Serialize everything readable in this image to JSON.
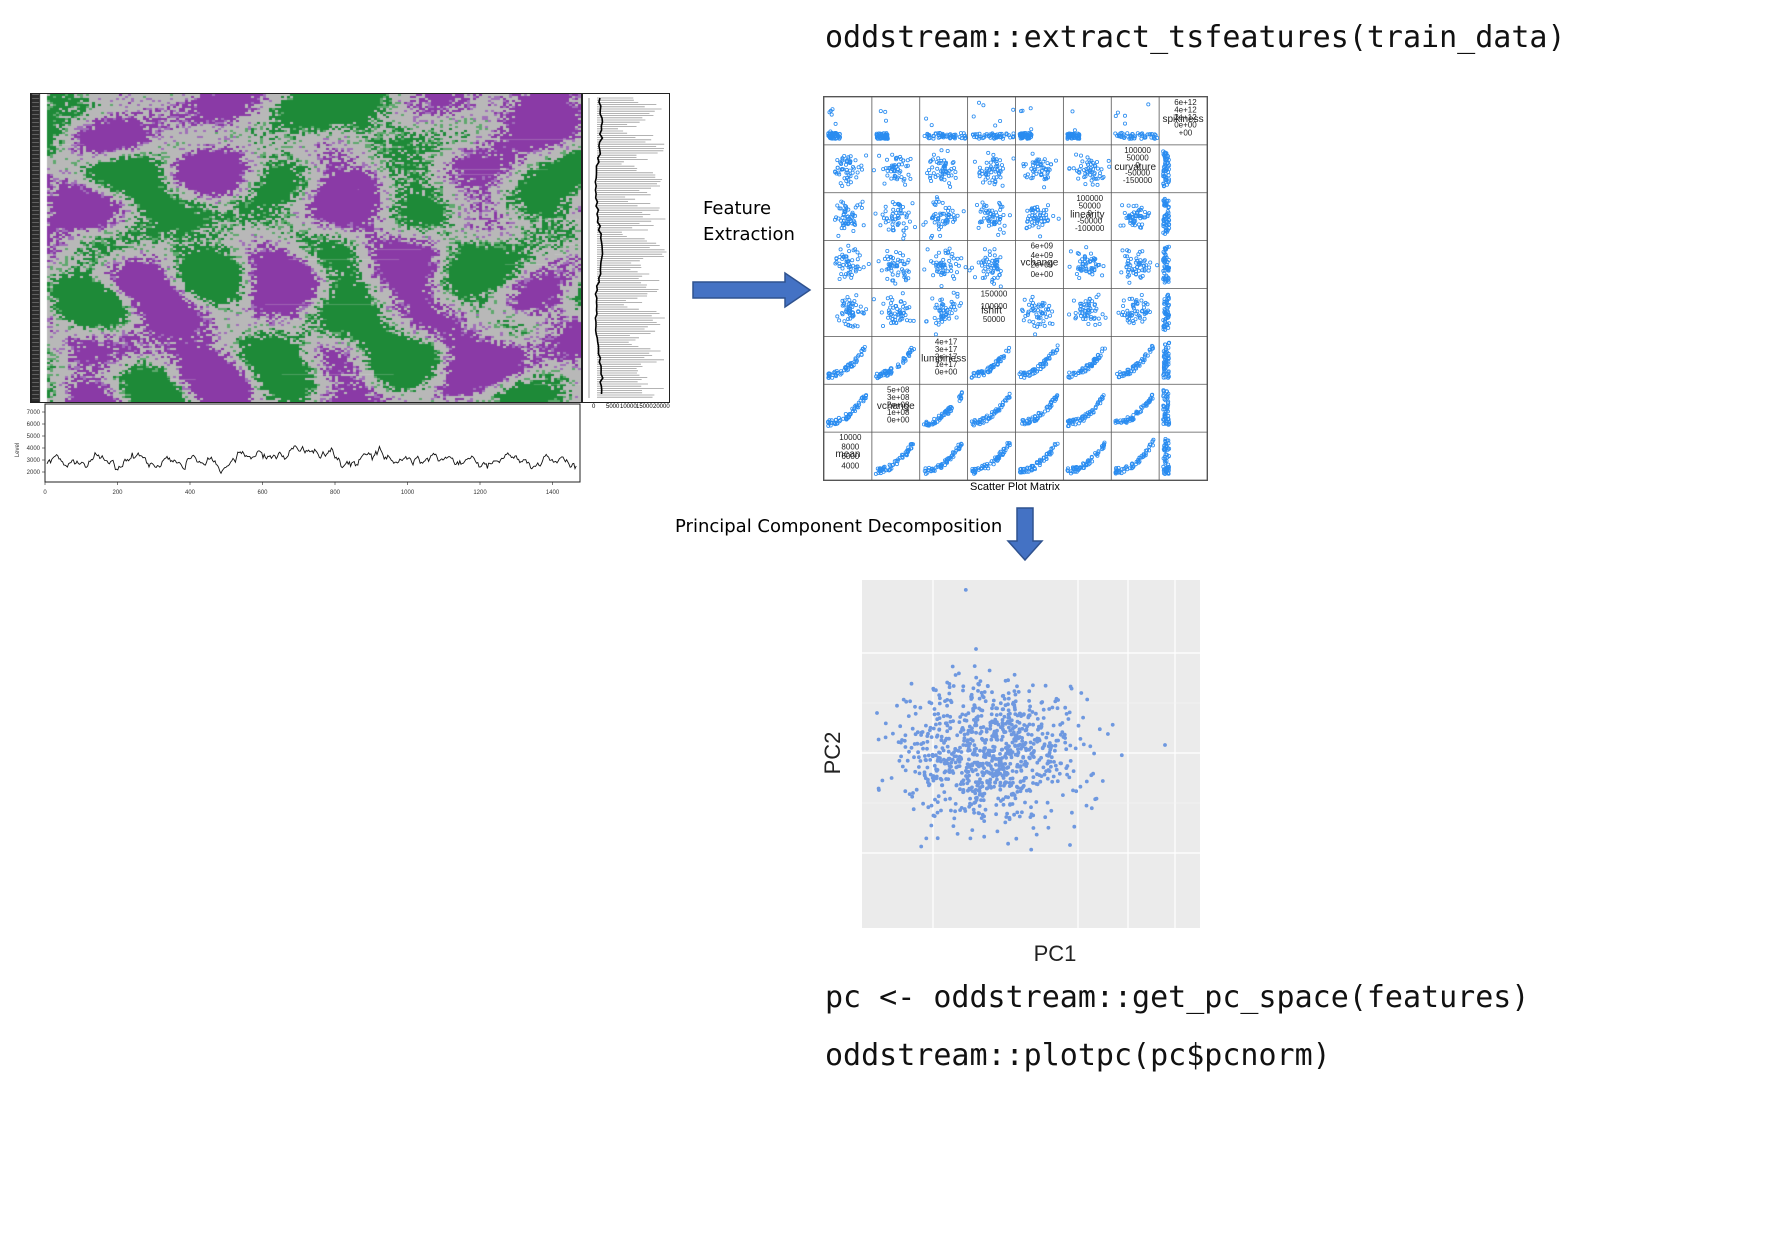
{
  "code": {
    "extract": "oddstream::extract_tsfeatures(train_data)",
    "get_pc": "pc <- oddstream::get_pc_space(features)",
    "plotpc": "oddstream::plotpc(pc$pcnorm)"
  },
  "steps": {
    "feature_extraction_line1": "Feature",
    "feature_extraction_line2": "Extraction",
    "pca": "Principal Component Decomposition"
  },
  "colors": {
    "heat_purple": "#8a3aa6",
    "heat_green": "#1e8a38",
    "heat_grey": "#b8b8b8",
    "arrow": "#4472c4",
    "scatter_blue": "#2a8cf0",
    "pc_point": "#6e98e0",
    "pc_panel": "#ebebeb"
  },
  "timeseries": {
    "ylabel": "Level",
    "yticks": [
      "7000",
      "6000",
      "5000",
      "4000",
      "3000",
      "2000"
    ],
    "xticks": [
      "0",
      "200",
      "400",
      "600",
      "800",
      "1000",
      "1200",
      "1400"
    ],
    "side_xticks": [
      "0",
      "5000",
      "10000",
      "15000",
      "20000"
    ]
  },
  "scatter_matrix": {
    "caption": "Scatter Plot Matrix",
    "diagonal": [
      {
        "name": "spikiness",
        "ticks": [
          "6e+12",
          "4e+12",
          "2e+12",
          "0e+00",
          "+00"
        ]
      },
      {
        "name": "curvature",
        "ticks": [
          "100000",
          "50000",
          "0",
          "-50000",
          "-150000"
        ]
      },
      {
        "name": "linearity",
        "ticks": [
          "100000",
          "50000",
          "0",
          "-50000",
          "-100000"
        ]
      },
      {
        "name": "vchange",
        "ticks": [
          "6e+09",
          "4e+09",
          "2e+09",
          "0e+00"
        ]
      },
      {
        "name": "lshift",
        "ticks": [
          "150000",
          "100000",
          "50000"
        ]
      },
      {
        "name": "lumpiness",
        "ticks": [
          "4e+17",
          "3e+17",
          "2e+17",
          "1e+17",
          "0e+00"
        ]
      },
      {
        "name": "vchange",
        "ticks": [
          "5e+08",
          "3e+08",
          "2e+08",
          "1e+08",
          "0e+00"
        ]
      },
      {
        "name": "mean",
        "ticks": [
          "10000",
          "8000",
          "6000",
          "4000"
        ]
      }
    ]
  },
  "pc_plot": {
    "xlabel": "PC1",
    "ylabel": "PC2"
  }
}
